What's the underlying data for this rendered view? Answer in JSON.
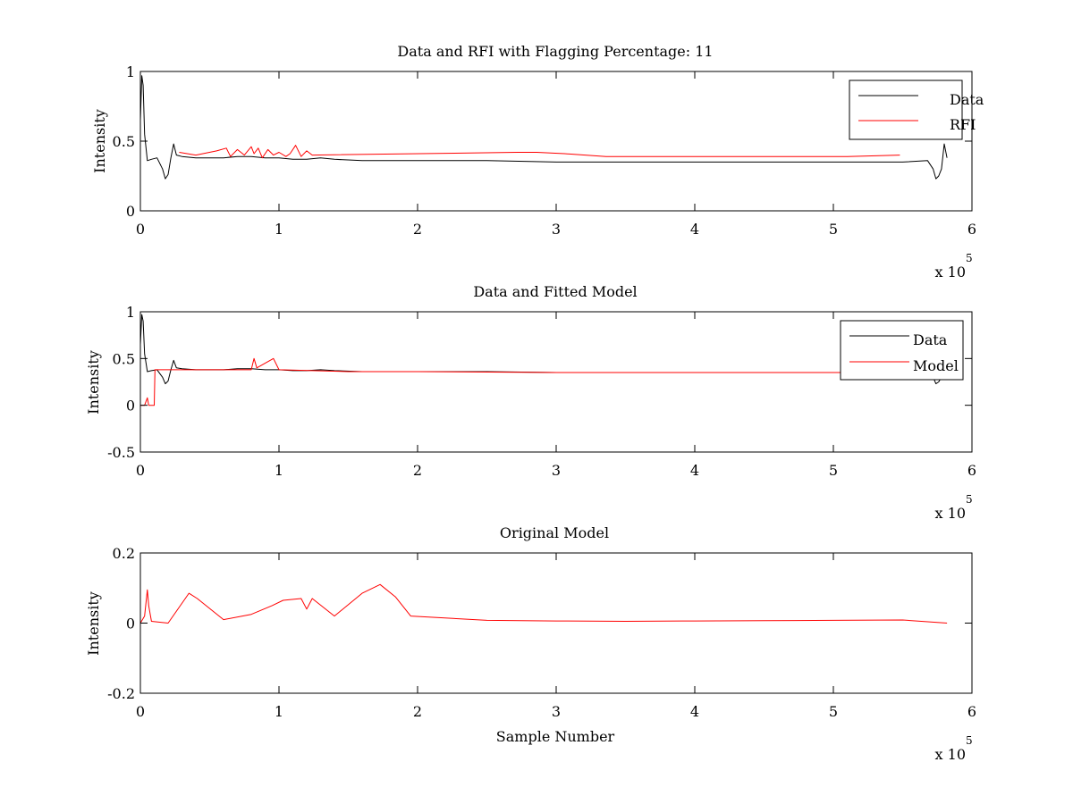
{
  "chart_data": [
    {
      "type": "line",
      "title": "Data and RFI with Flagging Percentage: 11",
      "xlabel": "",
      "ylabel": "Intensity",
      "xlim": [
        0,
        600000
      ],
      "ylim": [
        0,
        1
      ],
      "xticks": [
        0,
        100000,
        200000,
        300000,
        400000,
        500000,
        600000
      ],
      "xtick_labels": [
        "0",
        "1",
        "2",
        "3",
        "4",
        "5",
        "6"
      ],
      "yticks": [
        0,
        0.5,
        1
      ],
      "ytick_labels": [
        "0",
        "0.5",
        "1"
      ],
      "x_exponent": {
        "base": "x 10",
        "power": "5"
      },
      "grid": false,
      "legend": "top-right",
      "series": [
        {
          "name": "Data",
          "color": "#000000",
          "x": [
            0,
            1000,
            2000,
            3000,
            5000,
            8000,
            12000,
            16000,
            18000,
            20000,
            22000,
            24000,
            26000,
            30000,
            40000,
            50000,
            60000,
            70000,
            80000,
            90000,
            100000,
            110000,
            120000,
            130000,
            140000,
            160000,
            200000,
            250000,
            300000,
            350000,
            400000,
            450000,
            500000,
            550000,
            568000,
            572000,
            574000,
            576000,
            578000,
            580000,
            582000
          ],
          "y": [
            0.65,
            0.97,
            0.9,
            0.55,
            0.36,
            0.37,
            0.38,
            0.3,
            0.23,
            0.26,
            0.38,
            0.48,
            0.4,
            0.39,
            0.38,
            0.38,
            0.38,
            0.39,
            0.39,
            0.38,
            0.38,
            0.37,
            0.37,
            0.38,
            0.37,
            0.36,
            0.36,
            0.36,
            0.35,
            0.35,
            0.35,
            0.35,
            0.35,
            0.35,
            0.36,
            0.3,
            0.23,
            0.25,
            0.3,
            0.48,
            0.38
          ]
        },
        {
          "name": "RFI",
          "color": "#ff0000",
          "x": [
            28000,
            40000,
            55000,
            62000,
            65000,
            70000,
            75000,
            80000,
            82000,
            85000,
            88000,
            92000,
            96000,
            100000,
            105000,
            108000,
            112000,
            116000,
            120000,
            124000,
            272000,
            286000,
            306000,
            336000,
            436000,
            460000,
            485000,
            510000,
            548000
          ],
          "y": [
            0.42,
            0.4,
            0.43,
            0.45,
            0.39,
            0.44,
            0.4,
            0.46,
            0.41,
            0.45,
            0.38,
            0.44,
            0.4,
            0.42,
            0.39,
            0.41,
            0.47,
            0.39,
            0.43,
            0.4,
            0.42,
            0.42,
            0.41,
            0.39,
            0.39,
            0.39,
            0.39,
            0.39,
            0.4
          ]
        }
      ]
    },
    {
      "type": "line",
      "title": "Data and Fitted Model",
      "xlabel": "",
      "ylabel": "Intensity",
      "xlim": [
        0,
        600000
      ],
      "ylim": [
        -0.5,
        1
      ],
      "xticks": [
        0,
        100000,
        200000,
        300000,
        400000,
        500000,
        600000
      ],
      "xtick_labels": [
        "0",
        "1",
        "2",
        "3",
        "4",
        "5",
        "6"
      ],
      "yticks": [
        -0.5,
        0,
        0.5,
        1
      ],
      "ytick_labels": [
        "-0.5",
        "0",
        "0.5",
        "1"
      ],
      "x_exponent": {
        "base": "x 10",
        "power": "5"
      },
      "grid": false,
      "legend": "top-right",
      "series": [
        {
          "name": "Data",
          "color": "#000000",
          "x": [
            0,
            1000,
            2000,
            3000,
            5000,
            8000,
            12000,
            16000,
            18000,
            20000,
            22000,
            24000,
            26000,
            30000,
            40000,
            50000,
            60000,
            70000,
            80000,
            90000,
            100000,
            110000,
            120000,
            130000,
            140000,
            160000,
            200000,
            250000,
            300000,
            350000,
            400000,
            450000,
            500000,
            550000,
            568000,
            572000,
            574000,
            576000,
            578000,
            580000,
            582000
          ],
          "y": [
            0.65,
            0.97,
            0.9,
            0.55,
            0.36,
            0.37,
            0.38,
            0.3,
            0.23,
            0.26,
            0.38,
            0.48,
            0.4,
            0.39,
            0.38,
            0.38,
            0.38,
            0.39,
            0.39,
            0.38,
            0.38,
            0.37,
            0.37,
            0.38,
            0.37,
            0.36,
            0.36,
            0.36,
            0.35,
            0.35,
            0.35,
            0.35,
            0.35,
            0.35,
            0.36,
            0.3,
            0.23,
            0.25,
            0.3,
            0.48,
            0.38
          ]
        },
        {
          "name": "Model",
          "color": "#ff0000",
          "x": [
            0,
            3000,
            5000,
            6000,
            8000,
            9000,
            10000,
            10500,
            20000,
            50000,
            80000,
            82000,
            84000,
            96000,
            100000,
            150000,
            200000,
            300000,
            400000,
            500000,
            560000
          ],
          "y": [
            0,
            0,
            0.08,
            0,
            0,
            0,
            0,
            0.38,
            0.38,
            0.38,
            0.38,
            0.5,
            0.4,
            0.5,
            0.38,
            0.36,
            0.36,
            0.35,
            0.35,
            0.35,
            0.35
          ]
        }
      ]
    },
    {
      "type": "line",
      "title": "Original Model",
      "xlabel": "Sample Number",
      "ylabel": "Intensity",
      "xlim": [
        0,
        600000
      ],
      "ylim": [
        -0.2,
        0.2
      ],
      "xticks": [
        0,
        100000,
        200000,
        300000,
        400000,
        500000,
        600000
      ],
      "xtick_labels": [
        "0",
        "1",
        "2",
        "3",
        "4",
        "5",
        "6"
      ],
      "yticks": [
        -0.2,
        0,
        0.2
      ],
      "ytick_labels": [
        "-0.2",
        "0",
        "0.2"
      ],
      "x_exponent": {
        "base": "x 10",
        "power": "5"
      },
      "grid": false,
      "legend": "none",
      "series": [
        {
          "name": "",
          "color": "#ff0000",
          "x": [
            0,
            3000,
            5000,
            6000,
            8000,
            20000,
            35000,
            41000,
            60000,
            80000,
            95000,
            103000,
            116000,
            120000,
            124000,
            140000,
            160000,
            173000,
            184000,
            195000,
            250000,
            300000,
            350000,
            400000,
            450000,
            500000,
            550000,
            582000
          ],
          "y": [
            0,
            0.02,
            0.095,
            0.05,
            0.005,
            0,
            0.085,
            0.07,
            0.01,
            0.025,
            0.05,
            0.065,
            0.07,
            0.04,
            0.07,
            0.02,
            0.085,
            0.11,
            0.075,
            0.02,
            0.008,
            0.006,
            0.005,
            0.006,
            0.007,
            0.008,
            0.009,
            0
          ]
        }
      ]
    }
  ]
}
